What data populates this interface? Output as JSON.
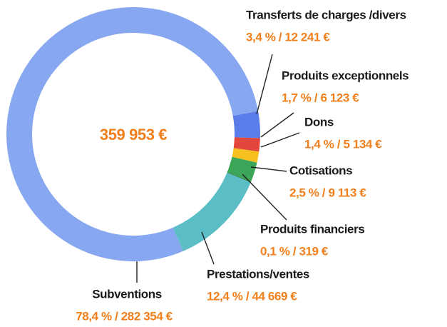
{
  "chart_data": {
    "type": "pie",
    "donut": true,
    "center_label": "359 953 €",
    "categories": [
      "Transferts de charges /divers",
      "Produits exceptionnels",
      "Dons",
      "Cotisations",
      "Produits financiers",
      "Prestations/ventes",
      "Subventions"
    ],
    "values": [
      3.4,
      1.7,
      1.4,
      2.5,
      0.1,
      12.4,
      78.4
    ],
    "value_labels": [
      "3,4 % / 12 241 €",
      "1,7 % / 6 123 €",
      "1,4 % / 5 134  €",
      "2,5 % / 9 113 €",
      "0,1 % / 319  €",
      "12,4 % / 44 669 €",
      "78,4 % / 282 354 €"
    ],
    "colors": [
      "#5a7de9",
      "#e2473d",
      "#f6c11f",
      "#3ba657",
      "#2f7d3c",
      "#5bbec7",
      "#88a7f1"
    ]
  }
}
